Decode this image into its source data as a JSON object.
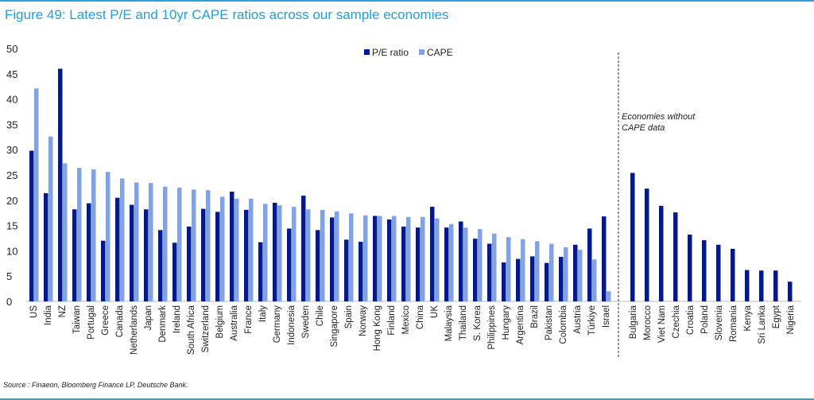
{
  "title": "Figure 49: Latest P/E and 10yr CAPE ratios across our sample economies",
  "source": "Source : Finaeon, Bloomberg Finance LP, Deutsche Bank.",
  "colors": {
    "pe": "#00189a",
    "cape": "#7da3ea"
  },
  "chart_data": {
    "type": "bar",
    "title": "Figure 49: Latest P/E and 10yr CAPE ratios across our sample economies",
    "xlabel": "",
    "ylabel": "",
    "ylim": [
      0,
      50
    ],
    "yticks": [
      0,
      5,
      10,
      15,
      20,
      25,
      30,
      35,
      40,
      45,
      50
    ],
    "legend": [
      "P/E ratio",
      "CAPE"
    ],
    "legend_position": "top-center",
    "annotation": [
      "Economies without",
      "CAPE data"
    ],
    "categories": [
      "US",
      "India",
      "NZ",
      "Taiwan",
      "Portugal",
      "Greece",
      "Canada",
      "Netherlands",
      "Japan",
      "Denmark",
      "Ireland",
      "South Africa",
      "Switzerland",
      "Belgium",
      "Australia",
      "France",
      "Italy",
      "Germany",
      "Indonesia",
      "Sweden",
      "Chile",
      "Singapore",
      "Spain",
      "Norway",
      "Hong Kong",
      "Finland",
      "Mexico",
      "China",
      "UK",
      "Malaysia",
      "Thailand",
      "S. Korea",
      "Philippines",
      "Hungary",
      "Argentina",
      "Brazil",
      "Pakistan",
      "Colombia",
      "Austria",
      "Türkiye",
      "Israel"
    ],
    "series": [
      {
        "name": "P/E ratio",
        "values": [
          29.8,
          21.4,
          46,
          18.2,
          19.4,
          12,
          20.5,
          19.1,
          18.2,
          14.1,
          11.6,
          14.8,
          18.3,
          17.7,
          21.7,
          18.1,
          11.7,
          19.5,
          14.4,
          20.9,
          14.1,
          16.6,
          12.2,
          11.8,
          16.9,
          16.2,
          14.8,
          14.6,
          18.7,
          14.6,
          15.8,
          12.4,
          11.4,
          7.7,
          8.4,
          8.9,
          7.6,
          8.8,
          11.2,
          14.4,
          16.8
        ]
      },
      {
        "name": "CAPE",
        "values": [
          42.1,
          32.6,
          27.3,
          26.4,
          26.1,
          25.6,
          24.3,
          23.5,
          23.4,
          22.7,
          22.5,
          22.1,
          22.0,
          20.7,
          20.3,
          20.3,
          19.3,
          19.0,
          18.7,
          18.2,
          18.1,
          17.8,
          17.4,
          17.0,
          16.9,
          16.9,
          16.7,
          16.7,
          16.4,
          15.3,
          14.6,
          14.3,
          13.4,
          12.7,
          12.3,
          11.9,
          11.4,
          10.7,
          10.2,
          8.3,
          2.0
        ]
      }
    ],
    "no_cape": {
      "categories": [
        "Bulgaria",
        "Morocco",
        "Viet Nam",
        "Czechia",
        "Croatia",
        "Poland",
        "Slovenia",
        "Romania",
        "Kenya",
        "Sri Lanka",
        "Egypt",
        "Nigeria"
      ],
      "values": [
        25.4,
        22.3,
        18.9,
        17.6,
        13.2,
        12.1,
        11.2,
        10.4,
        6.2,
        6.1,
        6.1,
        3.9
      ]
    }
  }
}
